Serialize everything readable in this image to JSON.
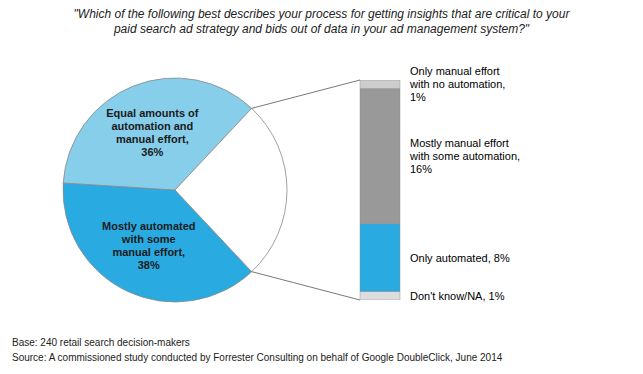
{
  "chart_data": [
    {
      "type": "pie",
      "title": "\"Which of the following best describes your process for getting insights that are critical to your\npaid search ad strategy and bids out of data in your ad management system?\"",
      "categories": [
        "Mostly automated\nwith some\nmanual effort,\n38%",
        "Equal amounts of\nautomation and\nmanual effort,\n36%",
        null
      ],
      "values": [
        38,
        36,
        26
      ],
      "colors": [
        "#29ABE2",
        "#87CEEB",
        "#FFFFFF"
      ],
      "annotations": [
        "Base: 240 retail search decision-makers",
        "Source: A commissioned study conducted by Forrester Consulting on behalf of Google DoubleClick, June 2014"
      ]
    },
    {
      "type": "bar",
      "stacked": true,
      "categories": [
        null
      ],
      "series": [
        {
          "name": "Don't know/NA, 1%",
          "color": "#DDDDDD",
          "values": [
            1
          ]
        },
        {
          "name": "Only automated, 8%",
          "color": "#29ABE2",
          "values": [
            8
          ]
        },
        {
          "name": "Mostly manual effort\nwith some automation,\n16%",
          "color": "#999999",
          "values": [
            16
          ]
        },
        {
          "name": "Only manual effort\nwith no automation,\n1%",
          "color": "#CCCCCC",
          "values": [
            1
          ]
        }
      ],
      "ylim": [
        0,
        26
      ],
      "tick_labels": false
    }
  ]
}
